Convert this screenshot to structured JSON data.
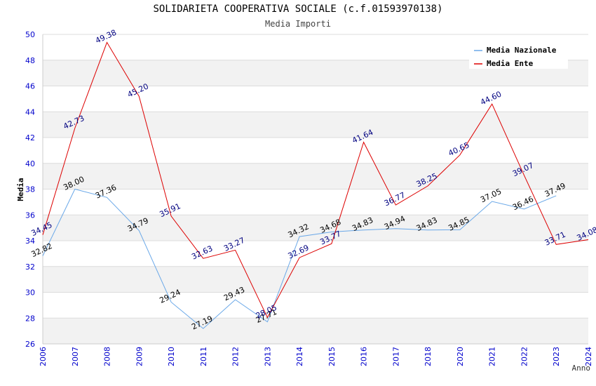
{
  "chart_data": {
    "type": "line",
    "title": "SOLIDARIETA COOPERATIVA SOCIALE (c.f.01593970138)",
    "subtitle": "Media Importi",
    "xlabel": "Anno",
    "ylabel": "Media",
    "ylim": [
      26,
      50
    ],
    "yticks": [
      26,
      28,
      30,
      32,
      34,
      36,
      38,
      40,
      42,
      44,
      46,
      48,
      50
    ],
    "categories": [
      "2006",
      "2007",
      "2008",
      "2009",
      "2010",
      "2011",
      "2012",
      "2013",
      "2014",
      "2015",
      "2016",
      "2017",
      "2018",
      "2020",
      "2021",
      "2022",
      "2023",
      "2024"
    ],
    "legend_position": "top-right",
    "grid": true,
    "series": [
      {
        "name": "Media Nazionale",
        "color": "#6aa8e8",
        "values": [
          32.82,
          38.0,
          37.36,
          34.79,
          29.24,
          27.19,
          29.43,
          27.71,
          34.32,
          34.68,
          34.83,
          34.94,
          34.83,
          34.85,
          37.05,
          36.46,
          37.49,
          null
        ],
        "labels": [
          "32.82",
          "38.00",
          "37.36",
          "34.79",
          "29.24",
          "27.19",
          "29.43",
          "27.71",
          "34.32",
          "34.68",
          "34.83",
          "34.94",
          "34.83",
          "34.85",
          "37.05",
          "36.46",
          "37.49",
          ""
        ]
      },
      {
        "name": "Media Ente",
        "color": "#dd0000",
        "values": [
          34.45,
          42.73,
          49.38,
          45.2,
          35.91,
          32.63,
          33.27,
          28.05,
          32.69,
          33.77,
          41.64,
          36.77,
          38.25,
          40.65,
          44.6,
          39.07,
          33.71,
          34.08
        ],
        "labels": [
          "34.45",
          "42.73",
          "49.38",
          "45.20",
          "35.91",
          "32.63",
          "33.27",
          "28.05",
          "32.69",
          "33.77",
          "41.64",
          "36.77",
          "38.25",
          "40.65",
          "44.60",
          "39.07",
          "33.71",
          "34.08"
        ]
      }
    ]
  }
}
